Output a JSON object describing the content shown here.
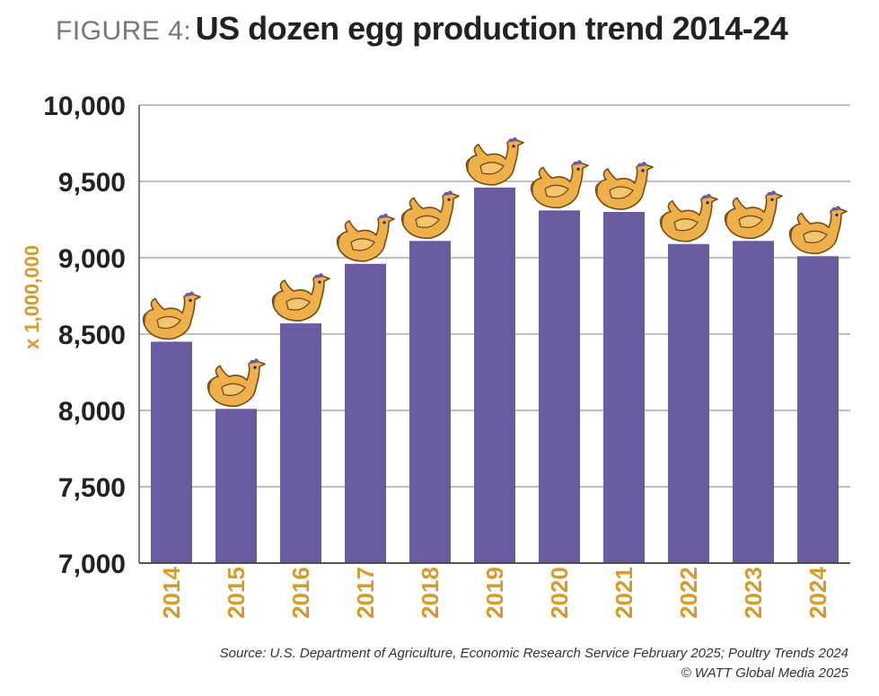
{
  "title_prefix": "FIGURE 4:",
  "title_main": "US dozen egg production trend 2014-24",
  "source_line": "Source: U.S. Department of Agriculture, Economic Research Service February 2025; Poultry Trends 2024",
  "copyright_line": "© WATT Global Media 2025",
  "colors": {
    "bar": "#6a5aa0",
    "accent": "#d69a2d",
    "grid": "#9a9a9a"
  },
  "chart_data": {
    "type": "bar",
    "title": "US dozen egg production trend 2014-24",
    "ylabel": "x 1,000,000",
    "xlabel": "",
    "categories": [
      "2014",
      "2015",
      "2016",
      "2017",
      "2018",
      "2019",
      "2020",
      "2021",
      "2022",
      "2023",
      "2024"
    ],
    "values": [
      8450,
      8010,
      8570,
      8960,
      9110,
      9460,
      9310,
      9300,
      9090,
      9110,
      9010
    ],
    "ylim": [
      7000,
      10000
    ],
    "yticks": [
      7000,
      7500,
      8000,
      8500,
      9000,
      9500,
      10000
    ],
    "ytick_labels": [
      "7,000",
      "7,500",
      "8,000",
      "8,500",
      "9,000",
      "9,500",
      "10,000"
    ],
    "grid": true,
    "marker_icon": "hen-icon"
  }
}
